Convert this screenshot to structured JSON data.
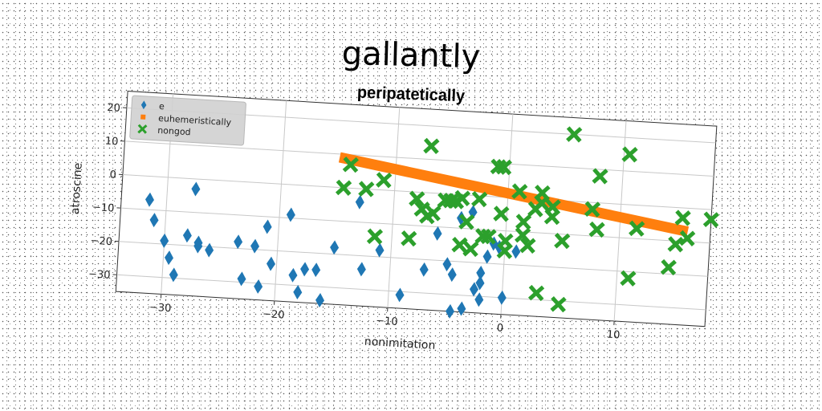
{
  "title": "gallantly",
  "subtitle": "peripatetically",
  "chart_data": {
    "type": "scatter",
    "xlabel": "nonimitation",
    "ylabel": "atroscine",
    "xlim": [
      -34,
      18
    ],
    "ylim": [
      -35,
      25
    ],
    "xticks": [
      -30,
      -20,
      -10,
      0,
      10
    ],
    "yticks": [
      20,
      10,
      0,
      -10,
      -20,
      -30
    ],
    "grid": true,
    "legend_position": "top-left",
    "series": [
      {
        "name": "e",
        "marker": "diamond",
        "color": "#1f77b4",
        "points": [
          [
            -31.5,
            -7
          ],
          [
            -31,
            -13
          ],
          [
            -30,
            -19
          ],
          [
            -29.5,
            -24
          ],
          [
            -29,
            -29
          ],
          [
            -28,
            -17
          ],
          [
            -27.5,
            -3
          ],
          [
            -27,
            -19
          ],
          [
            -27,
            -20
          ],
          [
            -26,
            -21
          ],
          [
            -23.5,
            -18
          ],
          [
            -23,
            -29
          ],
          [
            -22,
            -19
          ],
          [
            -21.5,
            -31
          ],
          [
            -21,
            -13
          ],
          [
            -20.5,
            -24
          ],
          [
            -19,
            -9
          ],
          [
            -18.5,
            -27
          ],
          [
            -18,
            -32
          ],
          [
            -17.5,
            -25
          ],
          [
            -16.5,
            -25
          ],
          [
            -16,
            -34
          ],
          [
            -15,
            -18
          ],
          [
            -13,
            -4
          ],
          [
            -12.5,
            -24
          ],
          [
            -11,
            -18
          ],
          [
            -9,
            -31
          ],
          [
            -7,
            -23
          ],
          [
            -6,
            -12
          ],
          [
            -5,
            -21
          ],
          [
            -4.5,
            -24
          ],
          [
            -4.5,
            -35
          ],
          [
            -3.5,
            -34
          ],
          [
            -3,
            -5
          ],
          [
            -2.5,
            -28
          ],
          [
            -2,
            -23
          ],
          [
            -2,
            -26
          ],
          [
            -2,
            -31
          ],
          [
            -1,
            -14
          ],
          [
            -0.5,
            -15
          ],
          [
            0,
            -30
          ],
          [
            1,
            -16
          ],
          [
            -1.5,
            -18
          ],
          [
            -4,
            -7
          ]
        ]
      },
      {
        "name": "euhemeristically",
        "marker": "square",
        "color": "#ff7f0e",
        "line": [
          [
            -15,
            9
          ],
          [
            16,
            -7
          ]
        ]
      },
      {
        "name": "nongod",
        "marker": "x",
        "color": "#2ca02c",
        "points": [
          [
            -14.5,
            0
          ],
          [
            -14,
            7
          ],
          [
            -12.5,
            0
          ],
          [
            -11.5,
            -14
          ],
          [
            -11,
            3
          ],
          [
            -8.5,
            -14
          ],
          [
            -8,
            -2
          ],
          [
            -7.5,
            -5
          ],
          [
            -7,
            -7
          ],
          [
            -7,
            14
          ],
          [
            -6.5,
            -6
          ],
          [
            -5.5,
            -2
          ],
          [
            -5,
            -2
          ],
          [
            -4.5,
            -2
          ],
          [
            -4,
            -1
          ],
          [
            -4,
            -15
          ],
          [
            -3.5,
            -8
          ],
          [
            -3,
            -16
          ],
          [
            -2.5,
            -1
          ],
          [
            -2,
            -12
          ],
          [
            -1.5,
            -12
          ],
          [
            -1,
            9
          ],
          [
            -0.5,
            9
          ],
          [
            -0.5,
            -5
          ],
          [
            0,
            -16
          ],
          [
            0,
            -13
          ],
          [
            1,
            2
          ],
          [
            1.5,
            -7
          ],
          [
            1.5,
            -11
          ],
          [
            2,
            -14
          ],
          [
            2.5,
            -3
          ],
          [
            3,
            2
          ],
          [
            3,
            -1
          ],
          [
            3,
            -28
          ],
          [
            4,
            -2
          ],
          [
            4,
            -5
          ],
          [
            5,
            -31
          ],
          [
            5,
            -12
          ],
          [
            5.5,
            20
          ],
          [
            7.5,
            -2
          ],
          [
            8,
            -8
          ],
          [
            8,
            8
          ],
          [
            10.5,
            15
          ],
          [
            11,
            -22
          ],
          [
            11.5,
            -7
          ],
          [
            14.5,
            -18
          ],
          [
            15,
            -11
          ],
          [
            15.5,
            -3
          ],
          [
            16,
            -9
          ],
          [
            18,
            -3
          ]
        ]
      }
    ]
  }
}
